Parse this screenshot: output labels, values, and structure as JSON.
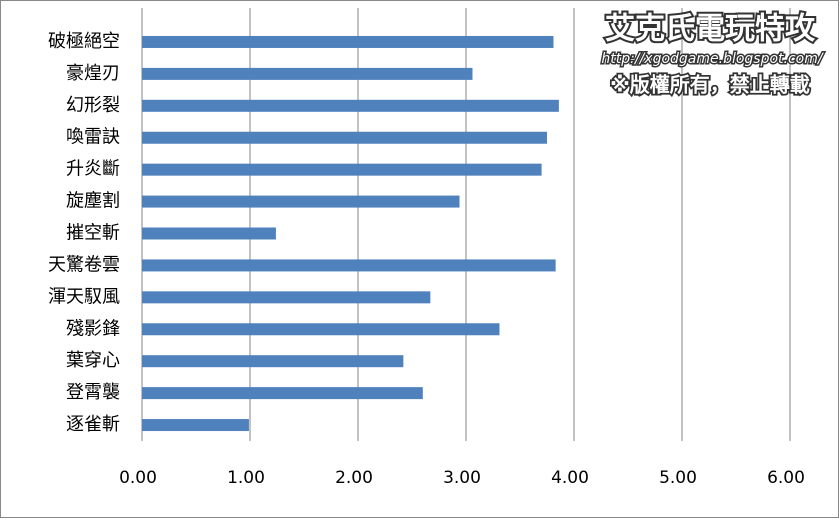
{
  "chart_data": {
    "type": "bar",
    "orientation": "horizontal",
    "categories": [
      "破極絕空",
      "豪煌刃",
      "幻形裂",
      "喚雷訣",
      "升炎斷",
      "旋塵割",
      "摧空斬",
      "天驚卷雲",
      "渾天馭風",
      "殘影鋒",
      "葉穿心",
      "登霄襲",
      "逐雀斬"
    ],
    "values": [
      3.81,
      3.06,
      3.86,
      3.75,
      3.7,
      2.94,
      1.24,
      3.83,
      2.67,
      3.31,
      2.42,
      2.6,
      0.99
    ],
    "color": "#4f81bd",
    "xlim": [
      0,
      6
    ],
    "xticks": [
      {
        "value": 0,
        "label": "0.00"
      },
      {
        "value": 1,
        "label": "1.00"
      },
      {
        "value": 2,
        "label": "2.00"
      },
      {
        "value": 3,
        "label": "3.00"
      },
      {
        "value": 4,
        "label": "4.00"
      },
      {
        "value": 5,
        "label": "5.00"
      },
      {
        "value": 6,
        "label": "6.00"
      }
    ],
    "grid": true,
    "annotations": [
      "艾克氏電玩特攻",
      "http://xgodgame.blogspot.com/",
      "※版權所有，禁止轉載"
    ]
  }
}
